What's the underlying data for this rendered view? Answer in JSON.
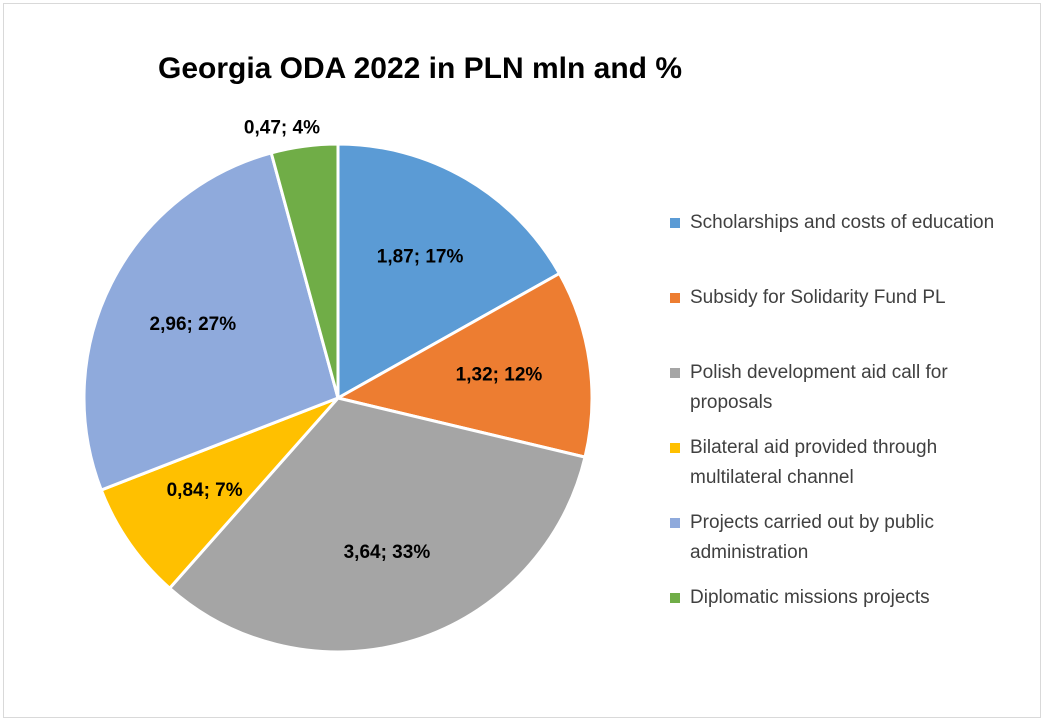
{
  "chart_data": {
    "type": "pie",
    "title": "Georgia ODA 2022 in PLN mln and %",
    "categories": [
      "Scholarships and costs of education",
      "Subsidy for Solidarity Fund PL",
      "Polish development aid call for proposals",
      "Bilateral aid provided through multilateral channel",
      "Projects carried out by public administration",
      "Diplomatic missions projects"
    ],
    "values": [
      1.87,
      1.32,
      3.64,
      0.84,
      2.96,
      0.47
    ],
    "value_labels": [
      "1,87; 17%",
      "1,32; 12%",
      "3,64; 33%",
      "0,84; 7%",
      "2,96; 27%",
      "0,47; 4%"
    ],
    "colors": [
      "#5b9bd5",
      "#ed7d31",
      "#a5a5a5",
      "#ffc000",
      "#8faadc",
      "#70ad47"
    ],
    "legend": "right"
  }
}
